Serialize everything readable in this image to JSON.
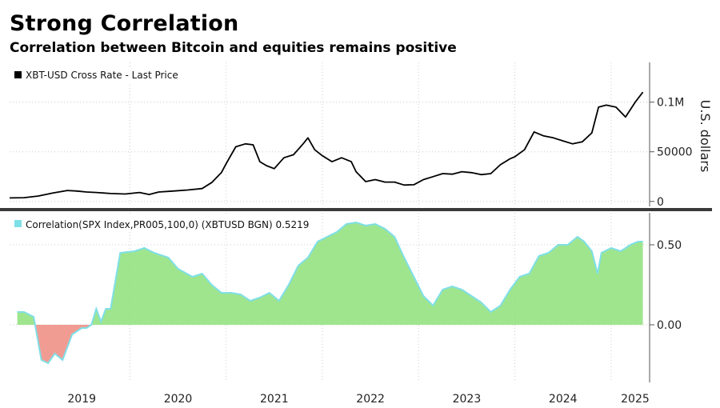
{
  "header": {
    "title": "Strong Correlation",
    "subtitle": "Correlation between Bitcoin and equities remains positive"
  },
  "colors": {
    "price_line": "#000000",
    "corr_line": "#7fdfe6",
    "corr_fill_pos": "#8ee07a",
    "corr_fill_neg": "#ef8b80",
    "grid": "#cccccc",
    "divider": "#3a3a3a"
  },
  "chart_data": [
    {
      "type": "line",
      "legend": "XBT-USD Cross Rate - Last Price",
      "legend_placement": "top-left",
      "ylabel": "U.S. dollars",
      "yticks": [
        {
          "value": 0,
          "label": "0"
        },
        {
          "value": 50000,
          "label": "50000"
        },
        {
          "value": 100000,
          "label": "0.1M"
        }
      ],
      "ylim": [
        -5000,
        140000
      ],
      "xlim": [
        2018.75,
        2025.4
      ],
      "grid": true,
      "x": [
        2018.75,
        2018.9,
        2019.05,
        2019.2,
        2019.35,
        2019.45,
        2019.55,
        2019.65,
        2019.8,
        2019.95,
        2020.1,
        2020.2,
        2020.3,
        2020.45,
        2020.6,
        2020.75,
        2020.85,
        2020.95,
        2021.0,
        2021.1,
        2021.2,
        2021.28,
        2021.35,
        2021.42,
        2021.5,
        2021.6,
        2021.7,
        2021.8,
        2021.85,
        2021.92,
        2022.0,
        2022.1,
        2022.2,
        2022.3,
        2022.35,
        2022.45,
        2022.55,
        2022.65,
        2022.75,
        2022.85,
        2022.95,
        2023.05,
        2023.15,
        2023.25,
        2023.35,
        2023.45,
        2023.55,
        2023.65,
        2023.75,
        2023.85,
        2023.95,
        2024.0,
        2024.1,
        2024.2,
        2024.3,
        2024.4,
        2024.5,
        2024.6,
        2024.7,
        2024.8,
        2024.87,
        2024.95,
        2025.05,
        2025.15,
        2025.25,
        2025.33
      ],
      "y": [
        3500,
        3800,
        5500,
        8500,
        11000,
        10500,
        9500,
        9000,
        8000,
        7500,
        9000,
        7000,
        9500,
        10500,
        11500,
        13000,
        19000,
        29000,
        38000,
        55000,
        58000,
        57000,
        40000,
        36000,
        33000,
        44000,
        47000,
        58000,
        64000,
        52000,
        46000,
        40000,
        44000,
        40000,
        30000,
        20000,
        22000,
        19500,
        19500,
        16500,
        16800,
        22000,
        25000,
        28000,
        27500,
        30000,
        29000,
        27000,
        28000,
        37000,
        43000,
        45000,
        52000,
        70000,
        66000,
        64000,
        61000,
        58000,
        60000,
        69000,
        95000,
        97000,
        95000,
        85000,
        100000,
        110000
      ]
    },
    {
      "type": "area",
      "legend": "Correlation(SPX Index,PR005,100,0) (XBTUSD BGN) 0.5219",
      "legend_placement": "top-left",
      "yticks": [
        {
          "value": 0.0,
          "label": "0.00"
        },
        {
          "value": 0.5,
          "label": "0.50"
        }
      ],
      "ylim": [
        -0.35,
        0.7
      ],
      "xlim": [
        2018.75,
        2025.4
      ],
      "xticks": [
        "2019",
        "2020",
        "2021",
        "2022",
        "2023",
        "2024",
        "2025"
      ],
      "grid": true,
      "x": [
        2018.83,
        2018.9,
        2019.0,
        2019.08,
        2019.15,
        2019.22,
        2019.3,
        2019.4,
        2019.5,
        2019.55,
        2019.6,
        2019.65,
        2019.7,
        2019.75,
        2019.8,
        2019.9,
        2020.05,
        2020.15,
        2020.25,
        2020.4,
        2020.5,
        2020.65,
        2020.75,
        2020.85,
        2020.95,
        2021.05,
        2021.15,
        2021.25,
        2021.35,
        2021.45,
        2021.55,
        2021.65,
        2021.75,
        2021.85,
        2021.95,
        2022.05,
        2022.15,
        2022.25,
        2022.35,
        2022.45,
        2022.55,
        2022.65,
        2022.75,
        2022.85,
        2022.95,
        2023.05,
        2023.15,
        2023.25,
        2023.35,
        2023.45,
        2023.55,
        2023.65,
        2023.75,
        2023.85,
        2023.95,
        2024.05,
        2024.15,
        2024.25,
        2024.35,
        2024.45,
        2024.55,
        2024.65,
        2024.72,
        2024.8,
        2024.86,
        2024.9,
        2025.0,
        2025.1,
        2025.2,
        2025.28,
        2025.33
      ],
      "y": [
        0.08,
        0.08,
        0.05,
        -0.22,
        -0.24,
        -0.18,
        -0.22,
        -0.06,
        -0.02,
        -0.02,
        0.0,
        0.1,
        0.02,
        0.1,
        0.1,
        0.45,
        0.46,
        0.48,
        0.45,
        0.42,
        0.35,
        0.3,
        0.32,
        0.25,
        0.2,
        0.2,
        0.19,
        0.15,
        0.17,
        0.2,
        0.15,
        0.25,
        0.37,
        0.42,
        0.52,
        0.55,
        0.58,
        0.63,
        0.64,
        0.62,
        0.63,
        0.6,
        0.55,
        0.42,
        0.3,
        0.18,
        0.12,
        0.22,
        0.24,
        0.22,
        0.18,
        0.14,
        0.08,
        0.12,
        0.22,
        0.3,
        0.32,
        0.43,
        0.45,
        0.5,
        0.5,
        0.55,
        0.52,
        0.46,
        0.32,
        0.45,
        0.48,
        0.46,
        0.5,
        0.52,
        0.52
      ]
    }
  ]
}
